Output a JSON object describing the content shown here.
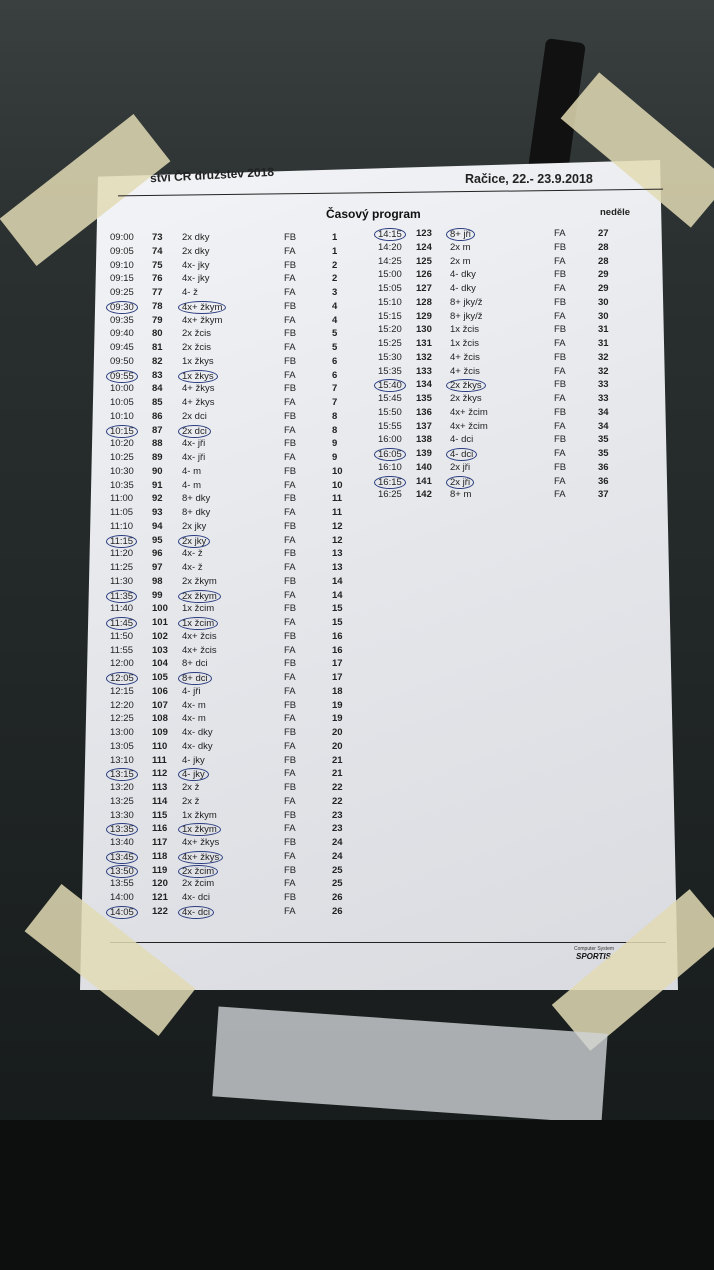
{
  "header": {
    "event": "ství ČR družstev 2018",
    "place_date": "Račice,  22.- 23.9.2018"
  },
  "title": "Časový program",
  "day": "neděle",
  "footer": {
    "line1": "Computer System",
    "line2": "SPORTIS"
  },
  "colors": {
    "pen_circle": "#2a3d80",
    "paper": "#eceef2",
    "tape": "#e2dab4"
  },
  "left_rows": [
    [
      "09:00",
      "73",
      "2x dky",
      "FB",
      "1",
      false
    ],
    [
      "09:05",
      "74",
      "2x dky",
      "FA",
      "1",
      false
    ],
    [
      "09:10",
      "75",
      "4x- jky",
      "FB",
      "2",
      false
    ],
    [
      "09:15",
      "76",
      "4x- jky",
      "FA",
      "2",
      false
    ],
    [
      "09:25",
      "77",
      "4- ž",
      "FA",
      "3",
      false
    ],
    [
      "09:30",
      "78",
      "4x+ žkym",
      "FB",
      "4",
      true
    ],
    [
      "09:35",
      "79",
      "4x+ žkym",
      "FA",
      "4",
      false
    ],
    [
      "09:40",
      "80",
      "2x žcis",
      "FB",
      "5",
      false
    ],
    [
      "09:45",
      "81",
      "2x žcis",
      "FA",
      "5",
      false
    ],
    [
      "09:50",
      "82",
      "1x žkys",
      "FB",
      "6",
      false
    ],
    [
      "09:55",
      "83",
      "1x žkys",
      "FA",
      "6",
      true
    ],
    [
      "10:00",
      "84",
      "4+ žkys",
      "FB",
      "7",
      false
    ],
    [
      "10:05",
      "85",
      "4+ žkys",
      "FA",
      "7",
      false
    ],
    [
      "10:10",
      "86",
      "2x dci",
      "FB",
      "8",
      false
    ],
    [
      "10:15",
      "87",
      "2x dci",
      "FA",
      "8",
      true
    ],
    [
      "10:20",
      "88",
      "4x- jři",
      "FB",
      "9",
      false
    ],
    [
      "10:25",
      "89",
      "4x- jři",
      "FA",
      "9",
      false
    ],
    [
      "10:30",
      "90",
      "4- m",
      "FB",
      "10",
      false
    ],
    [
      "10:35",
      "91",
      "4- m",
      "FA",
      "10",
      false
    ],
    [
      "11:00",
      "92",
      "8+ dky",
      "FB",
      "11",
      false
    ],
    [
      "11:05",
      "93",
      "8+ dky",
      "FA",
      "11",
      false
    ],
    [
      "11:10",
      "94",
      "2x jky",
      "FB",
      "12",
      false
    ],
    [
      "11:15",
      "95",
      "2x jky",
      "FA",
      "12",
      true
    ],
    [
      "11:20",
      "96",
      "4x- ž",
      "FB",
      "13",
      false
    ],
    [
      "11:25",
      "97",
      "4x- ž",
      "FA",
      "13",
      false
    ],
    [
      "11:30",
      "98",
      "2x žkym",
      "FB",
      "14",
      false
    ],
    [
      "11:35",
      "99",
      "2x žkym",
      "FA",
      "14",
      true
    ],
    [
      "11:40",
      "100",
      "1x žcim",
      "FB",
      "15",
      false
    ],
    [
      "11:45",
      "101",
      "1x žcim",
      "FA",
      "15",
      true
    ],
    [
      "11:50",
      "102",
      "4x+ žcis",
      "FB",
      "16",
      false
    ],
    [
      "11:55",
      "103",
      "4x+ žcis",
      "FA",
      "16",
      false
    ],
    [
      "12:00",
      "104",
      "8+ dci",
      "FB",
      "17",
      false
    ],
    [
      "12:05",
      "105",
      "8+ dci",
      "FA",
      "17",
      true
    ],
    [
      "12:15",
      "106",
      "4- jři",
      "FA",
      "18",
      false
    ],
    [
      "12:20",
      "107",
      "4x- m",
      "FB",
      "19",
      false
    ],
    [
      "12:25",
      "108",
      "4x- m",
      "FA",
      "19",
      false
    ],
    [
      "13:00",
      "109",
      "4x- dky",
      "FB",
      "20",
      false
    ],
    [
      "13:05",
      "110",
      "4x- dky",
      "FA",
      "20",
      false
    ],
    [
      "13:10",
      "111",
      "4- jky",
      "FB",
      "21",
      false
    ],
    [
      "13:15",
      "112",
      "4- jky",
      "FA",
      "21",
      true
    ],
    [
      "13:20",
      "113",
      "2x ž",
      "FB",
      "22",
      false
    ],
    [
      "13:25",
      "114",
      "2x ž",
      "FA",
      "22",
      false
    ],
    [
      "13:30",
      "115",
      "1x žkym",
      "FB",
      "23",
      false
    ],
    [
      "13:35",
      "116",
      "1x žkym",
      "FA",
      "23",
      true
    ],
    [
      "13:40",
      "117",
      "4x+ žkys",
      "FB",
      "24",
      false
    ],
    [
      "13:45",
      "118",
      "4x+ žkys",
      "FA",
      "24",
      true
    ],
    [
      "13:50",
      "119",
      "2x žcim",
      "FB",
      "25",
      true
    ],
    [
      "13:55",
      "120",
      "2x žcim",
      "FA",
      "25",
      false
    ],
    [
      "14:00",
      "121",
      "4x- dci",
      "FB",
      "26",
      false
    ],
    [
      "14:05",
      "122",
      "4x- dci",
      "FA",
      "26",
      true
    ]
  ],
  "right_rows": [
    [
      "14:15",
      "123",
      "8+ jři",
      "FA",
      "27",
      true
    ],
    [
      "14:20",
      "124",
      "2x m",
      "FB",
      "28",
      false
    ],
    [
      "14:25",
      "125",
      "2x m",
      "FA",
      "28",
      false
    ],
    [
      "15:00",
      "126",
      "4- dky",
      "FB",
      "29",
      false
    ],
    [
      "15:05",
      "127",
      "4- dky",
      "FA",
      "29",
      false
    ],
    [
      "15:10",
      "128",
      "8+ jky/ž",
      "FB",
      "30",
      false
    ],
    [
      "15:15",
      "129",
      "8+ jky/ž",
      "FA",
      "30",
      false
    ],
    [
      "15:20",
      "130",
      "1x žcis",
      "FB",
      "31",
      false
    ],
    [
      "15:25",
      "131",
      "1x žcis",
      "FA",
      "31",
      false
    ],
    [
      "15:30",
      "132",
      "4+ žcis",
      "FB",
      "32",
      false
    ],
    [
      "15:35",
      "133",
      "4+ žcis",
      "FA",
      "32",
      false
    ],
    [
      "15:40",
      "134",
      "2x žkys",
      "FB",
      "33",
      true
    ],
    [
      "15:45",
      "135",
      "2x žkys",
      "FA",
      "33",
      false
    ],
    [
      "15:50",
      "136",
      "4x+ žcim",
      "FB",
      "34",
      false
    ],
    [
      "15:55",
      "137",
      "4x+ žcim",
      "FA",
      "34",
      false
    ],
    [
      "16:00",
      "138",
      "4- dci",
      "FB",
      "35",
      false
    ],
    [
      "16:05",
      "139",
      "4- dci",
      "FA",
      "35",
      true
    ],
    [
      "16:10",
      "140",
      "2x jři",
      "FB",
      "36",
      false
    ],
    [
      "16:15",
      "141",
      "2x jři",
      "FA",
      "36",
      true
    ],
    [
      "16:25",
      "142",
      "8+ m",
      "FA",
      "37",
      false
    ]
  ]
}
